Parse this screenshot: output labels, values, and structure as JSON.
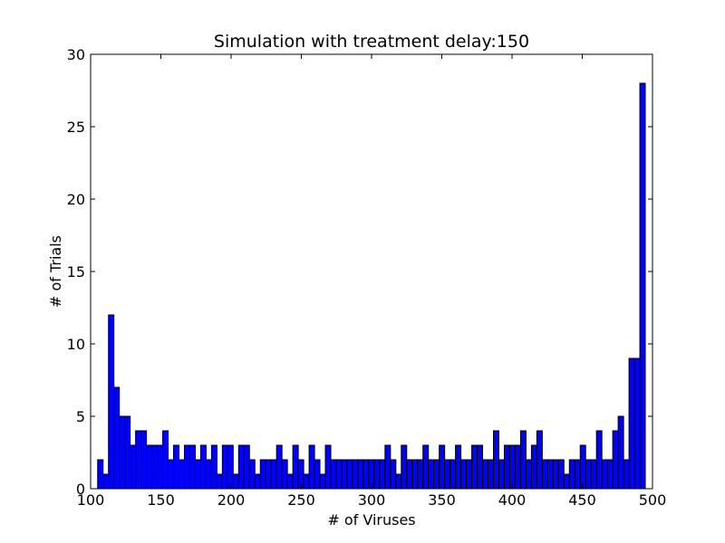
{
  "chart_data": {
    "type": "bar",
    "title": "Simulation with treatment delay:150",
    "xlabel": "# of Viruses",
    "ylabel": "# of Trials",
    "xlim": [
      100,
      500
    ],
    "ylim": [
      0,
      30
    ],
    "xticks": [
      100,
      150,
      200,
      250,
      300,
      350,
      400,
      450,
      500
    ],
    "yticks": [
      0,
      5,
      10,
      15,
      20,
      25,
      30
    ],
    "bin_start": 105,
    "bin_width": 3.86,
    "values": [
      2,
      1,
      12,
      7,
      5,
      5,
      3,
      4,
      4,
      3,
      3,
      3,
      4,
      2,
      3,
      2,
      3,
      3,
      2,
      3,
      2,
      3,
      1,
      3,
      3,
      1,
      3,
      3,
      2,
      1,
      2,
      2,
      2,
      3,
      2,
      1,
      3,
      2,
      1,
      3,
      2,
      1,
      3,
      2,
      2,
      2,
      2,
      2,
      2,
      2,
      2,
      2,
      2,
      3,
      2,
      1,
      3,
      2,
      2,
      2,
      3,
      2,
      2,
      3,
      2,
      2,
      3,
      2,
      2,
      3,
      3,
      2,
      2,
      4,
      2,
      3,
      3,
      3,
      4,
      2,
      3,
      4,
      2,
      2,
      2,
      2,
      1,
      2,
      2,
      3,
      2,
      2,
      4,
      2,
      2,
      4,
      5,
      2,
      9,
      9,
      28
    ],
    "bar_color": "#0000ff",
    "bar_edge_color": "#000000",
    "grid": false
  }
}
